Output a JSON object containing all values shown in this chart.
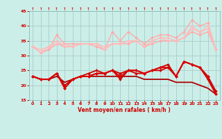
{
  "background_color": "#cceee8",
  "grid_color": "#aacccc",
  "xlabel": "Vent moyen/en rafales ( km/h )",
  "xlabel_color": "#cc0000",
  "tick_color": "#cc0000",
  "xlim": [
    -0.5,
    23.5
  ],
  "ylim": [
    15,
    45
  ],
  "yticks": [
    15,
    20,
    25,
    30,
    35,
    40,
    45
  ],
  "xticks": [
    0,
    1,
    2,
    3,
    4,
    5,
    6,
    7,
    8,
    9,
    10,
    11,
    12,
    13,
    14,
    15,
    16,
    17,
    18,
    19,
    20,
    21,
    22,
    23
  ],
  "series": [
    {
      "y": [
        33,
        31,
        32,
        37,
        34,
        34,
        34,
        34,
        34,
        32,
        38,
        35,
        38,
        36,
        34,
        36,
        37,
        37,
        36,
        38,
        42,
        40,
        41,
        32
      ],
      "color": "#ffaaaa",
      "lw": 1.0,
      "marker": "D",
      "ms": 2.0
    },
    {
      "y": [
        33,
        31,
        32,
        34,
        33,
        33,
        34,
        34,
        33,
        32,
        34,
        34,
        34,
        35,
        33,
        34,
        35,
        35,
        35,
        36,
        38,
        37,
        38,
        32
      ],
      "color": "#ffaaaa",
      "lw": 1.0,
      "marker": "D",
      "ms": 2.0
    },
    {
      "y": [
        33,
        31,
        33,
        35,
        33,
        33,
        34,
        34,
        34,
        32,
        34,
        34,
        35,
        35,
        33,
        35,
        36,
        35,
        35,
        36,
        40,
        38,
        40,
        32
      ],
      "color": "#ffbbbb",
      "lw": 1.0,
      "marker": "D",
      "ms": 2.0
    },
    {
      "y": [
        33,
        32,
        33,
        34,
        34,
        33,
        34,
        34,
        34,
        33,
        34,
        34,
        35,
        35,
        33,
        35,
        36,
        36,
        35,
        36,
        39,
        38,
        39,
        32
      ],
      "color": "#ffbbbb",
      "lw": 1.0,
      "marker": "D",
      "ms": 2.0
    },
    {
      "y": [
        23,
        22,
        22,
        24,
        20,
        22,
        23,
        24,
        25,
        24,
        25,
        24,
        25,
        25,
        24,
        25,
        26,
        27,
        23,
        28,
        27,
        26,
        23,
        18
      ],
      "color": "#cc0000",
      "lw": 1.3,
      "marker": "D",
      "ms": 2.0
    },
    {
      "y": [
        23,
        22,
        22,
        24,
        19,
        22,
        23,
        23,
        24,
        24,
        25,
        22,
        25,
        24,
        24,
        25,
        25,
        26,
        23,
        28,
        27,
        26,
        22,
        17
      ],
      "color": "#cc0000",
      "lw": 1.3,
      "marker": "D",
      "ms": 2.0
    },
    {
      "y": [
        23,
        22,
        22,
        24,
        19,
        22,
        23,
        23,
        24,
        24,
        25,
        23,
        25,
        25,
        24,
        25,
        26,
        26,
        23,
        28,
        27,
        26,
        23,
        17
      ],
      "color": "#dd0000",
      "lw": 1.3,
      "marker": "D",
      "ms": 2.0
    },
    {
      "y": [
        23,
        22,
        22,
        23,
        21,
        22,
        23,
        23,
        23,
        23,
        23,
        23,
        23,
        23,
        22,
        22,
        22,
        22,
        21,
        21,
        21,
        20,
        19,
        17
      ],
      "color": "#aa0000",
      "lw": 1.3,
      "marker": null,
      "ms": 0
    }
  ]
}
